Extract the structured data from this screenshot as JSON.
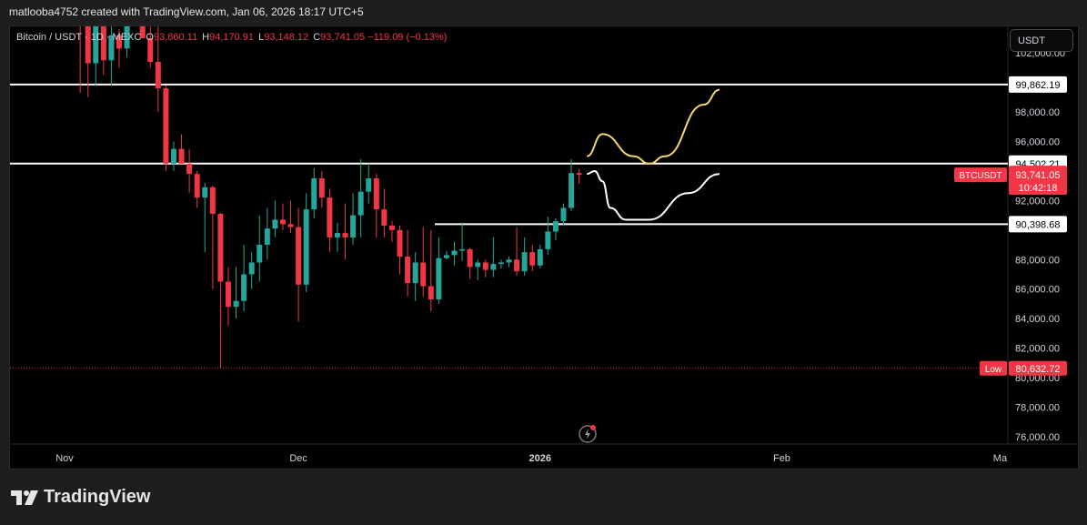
{
  "caption": "matlooba4752 created with TradingView.com, Jan 06, 2026 18:17 UTC+5",
  "legend": {
    "symbol": "Bitcoin / USDT · 1D · MEXC",
    "open_label": "O",
    "open": "93,860.11",
    "high_label": "H",
    "high": "94,170.91",
    "low_label": "L",
    "low": "93,148.12",
    "close_label": "C",
    "close": "93,741.05",
    "change": "−119.09 (−0.13%)"
  },
  "currency_button": "USDT",
  "brand": "TradingView",
  "colors": {
    "up": "#26a69a",
    "down": "#f23645",
    "line": "#ffffff",
    "yellow_path": "#f5d76e",
    "low_line": "#f23645"
  },
  "price_labels": {
    "levels": [
      {
        "value": 99862.19,
        "text": "99,862.19"
      },
      {
        "value": 94502.21,
        "text": "94,502.21"
      },
      {
        "value": 90398.68,
        "text": "90,398.68"
      }
    ],
    "current": {
      "ticker": "BTCUSDT",
      "price": "93,741.05",
      "countdown": "10:42:18",
      "value": 93741.05
    },
    "low": {
      "label": "Low",
      "price": "80,632.72",
      "value": 80632.72
    }
  },
  "chart_data": {
    "type": "candlestick",
    "y_axis": {
      "range": [
        75500,
        103800
      ],
      "ticks": [
        {
          "value": 102000,
          "label": "102,000.00"
        },
        {
          "value": 98000,
          "label": "98,000.00"
        },
        {
          "value": 96000,
          "label": "96,000.00"
        },
        {
          "value": 92000,
          "label": "92,000.00"
        },
        {
          "value": 88000,
          "label": "88,000.00"
        },
        {
          "value": 86000,
          "label": "86,000.00"
        },
        {
          "value": 84000,
          "label": "84,000.00"
        },
        {
          "value": 82000,
          "label": "82,000.00"
        },
        {
          "value": 80000,
          "label": "80,000.00"
        },
        {
          "value": 78000,
          "label": "78,000.00"
        },
        {
          "value": 76000,
          "label": "76,000.00"
        }
      ]
    },
    "x_axis": {
      "start_date": "2025-10-25",
      "end_date": "2026-03-02",
      "ticks": [
        {
          "date": "2025-11-01",
          "label": "Nov"
        },
        {
          "date": "2025-12-01",
          "label": "Dec"
        },
        {
          "date": "2026-01-01",
          "label": "2026"
        },
        {
          "date": "2026-02-01",
          "label": "Feb"
        },
        {
          "date": "2026-03-01",
          "label": "Ma"
        }
      ]
    },
    "candles": [
      {
        "date": "2025-11-03",
        "o": 107500,
        "h": 108000,
        "l": 99300,
        "c": 104000
      },
      {
        "date": "2025-11-04",
        "o": 104000,
        "h": 105000,
        "l": 99000,
        "c": 101300
      },
      {
        "date": "2025-11-05",
        "o": 101300,
        "h": 104500,
        "l": 99800,
        "c": 103900
      },
      {
        "date": "2025-11-06",
        "o": 103900,
        "h": 104100,
        "l": 100500,
        "c": 101500
      },
      {
        "date": "2025-11-07",
        "o": 101500,
        "h": 104000,
        "l": 99800,
        "c": 103200
      },
      {
        "date": "2025-11-08",
        "o": 103200,
        "h": 103600,
        "l": 101000,
        "c": 102300
      },
      {
        "date": "2025-11-09",
        "o": 102300,
        "h": 104500,
        "l": 101700,
        "c": 104700
      },
      {
        "date": "2025-11-10",
        "o": 104700,
        "h": 106500,
        "l": 104500,
        "c": 105900
      },
      {
        "date": "2025-11-11",
        "o": 105900,
        "h": 107000,
        "l": 103000,
        "c": 103000
      },
      {
        "date": "2025-11-12",
        "o": 103000,
        "h": 105500,
        "l": 101000,
        "c": 101400
      },
      {
        "date": "2025-11-13",
        "o": 101400,
        "h": 104000,
        "l": 98000,
        "c": 99600
      },
      {
        "date": "2025-11-14",
        "o": 99600,
        "h": 99800,
        "l": 94000,
        "c": 94500
      },
      {
        "date": "2025-11-15",
        "o": 94500,
        "h": 96000,
        "l": 94000,
        "c": 95500
      },
      {
        "date": "2025-11-16",
        "o": 95500,
        "h": 96500,
        "l": 94500,
        "c": 94500
      },
      {
        "date": "2025-11-17",
        "o": 94500,
        "h": 95500,
        "l": 92500,
        "c": 93800
      },
      {
        "date": "2025-11-18",
        "o": 93800,
        "h": 94000,
        "l": 91500,
        "c": 92200
      },
      {
        "date": "2025-11-19",
        "o": 92200,
        "h": 93200,
        "l": 88500,
        "c": 92900
      },
      {
        "date": "2025-11-20",
        "o": 92900,
        "h": 93000,
        "l": 86000,
        "c": 91100
      },
      {
        "date": "2025-11-21",
        "o": 91100,
        "h": 91200,
        "l": 80632.72,
        "c": 86500
      },
      {
        "date": "2025-11-22",
        "o": 86500,
        "h": 87500,
        "l": 83500,
        "c": 84800
      },
      {
        "date": "2025-11-23",
        "o": 84800,
        "h": 87500,
        "l": 84000,
        "c": 85200
      },
      {
        "date": "2025-11-24",
        "o": 85200,
        "h": 89000,
        "l": 84500,
        "c": 87000
      },
      {
        "date": "2025-11-25",
        "o": 87000,
        "h": 88500,
        "l": 86000,
        "c": 87800
      },
      {
        "date": "2025-11-26",
        "o": 87800,
        "h": 91000,
        "l": 86500,
        "c": 89000
      },
      {
        "date": "2025-11-27",
        "o": 89000,
        "h": 91500,
        "l": 88000,
        "c": 90100
      },
      {
        "date": "2025-11-28",
        "o": 90100,
        "h": 92000,
        "l": 89500,
        "c": 90700
      },
      {
        "date": "2025-11-29",
        "o": 90700,
        "h": 91800,
        "l": 90000,
        "c": 90400
      },
      {
        "date": "2025-11-30",
        "o": 90400,
        "h": 92000,
        "l": 89800,
        "c": 90200
      },
      {
        "date": "2025-12-01",
        "o": 90200,
        "h": 91500,
        "l": 83800,
        "c": 86300
      },
      {
        "date": "2025-12-02",
        "o": 86300,
        "h": 92500,
        "l": 85800,
        "c": 91400
      },
      {
        "date": "2025-12-03",
        "o": 91400,
        "h": 94200,
        "l": 90800,
        "c": 93500
      },
      {
        "date": "2025-12-04",
        "o": 93500,
        "h": 94000,
        "l": 91500,
        "c": 92200
      },
      {
        "date": "2025-12-05",
        "o": 92200,
        "h": 92800,
        "l": 88500,
        "c": 89500
      },
      {
        "date": "2025-12-06",
        "o": 89500,
        "h": 90500,
        "l": 88500,
        "c": 89800
      },
      {
        "date": "2025-12-07",
        "o": 89800,
        "h": 91800,
        "l": 88000,
        "c": 89500
      },
      {
        "date": "2025-12-08",
        "o": 89500,
        "h": 92500,
        "l": 89000,
        "c": 91000
      },
      {
        "date": "2025-12-09",
        "o": 91000,
        "h": 94800,
        "l": 89500,
        "c": 92600
      },
      {
        "date": "2025-12-10",
        "o": 92600,
        "h": 94500,
        "l": 91800,
        "c": 93500
      },
      {
        "date": "2025-12-11",
        "o": 93500,
        "h": 93800,
        "l": 89500,
        "c": 91400
      },
      {
        "date": "2025-12-12",
        "o": 91400,
        "h": 92800,
        "l": 89500,
        "c": 90300
      },
      {
        "date": "2025-12-13",
        "o": 90300,
        "h": 90600,
        "l": 89200,
        "c": 90000
      },
      {
        "date": "2025-12-14",
        "o": 90000,
        "h": 90300,
        "l": 87000,
        "c": 88200
      },
      {
        "date": "2025-12-15",
        "o": 88200,
        "h": 90000,
        "l": 85500,
        "c": 86400
      },
      {
        "date": "2025-12-16",
        "o": 86400,
        "h": 88500,
        "l": 85200,
        "c": 87800
      },
      {
        "date": "2025-12-17",
        "o": 87800,
        "h": 90200,
        "l": 85500,
        "c": 86200
      },
      {
        "date": "2025-12-18",
        "o": 86200,
        "h": 90000,
        "l": 84500,
        "c": 85300
      },
      {
        "date": "2025-12-19",
        "o": 85300,
        "h": 89500,
        "l": 85000,
        "c": 88100
      },
      {
        "date": "2025-12-20",
        "o": 88100,
        "h": 88600,
        "l": 88000,
        "c": 88300
      },
      {
        "date": "2025-12-21",
        "o": 88300,
        "h": 89200,
        "l": 87600,
        "c": 88600
      },
      {
        "date": "2025-12-22",
        "o": 88600,
        "h": 90500,
        "l": 87900,
        "c": 88700
      },
      {
        "date": "2025-12-23",
        "o": 88700,
        "h": 88800,
        "l": 86700,
        "c": 87500
      },
      {
        "date": "2025-12-24",
        "o": 87500,
        "h": 88000,
        "l": 86600,
        "c": 87800
      },
      {
        "date": "2025-12-25",
        "o": 87800,
        "h": 88000,
        "l": 86800,
        "c": 87300
      },
      {
        "date": "2025-12-26",
        "o": 87300,
        "h": 89500,
        "l": 86800,
        "c": 87700
      },
      {
        "date": "2025-12-27",
        "o": 87700,
        "h": 88000,
        "l": 87400,
        "c": 87800
      },
      {
        "date": "2025-12-28",
        "o": 87800,
        "h": 88200,
        "l": 87500,
        "c": 88000
      },
      {
        "date": "2025-12-29",
        "o": 88000,
        "h": 90200,
        "l": 86900,
        "c": 87200
      },
      {
        "date": "2025-12-30",
        "o": 87200,
        "h": 89500,
        "l": 86900,
        "c": 88500
      },
      {
        "date": "2025-12-31",
        "o": 88500,
        "h": 89000,
        "l": 87200,
        "c": 87600
      },
      {
        "date": "2026-01-01",
        "o": 87600,
        "h": 89000,
        "l": 87400,
        "c": 88700
      },
      {
        "date": "2026-01-02",
        "o": 88700,
        "h": 90900,
        "l": 88300,
        "c": 89900
      },
      {
        "date": "2026-01-03",
        "o": 89900,
        "h": 90800,
        "l": 89300,
        "c": 90600
      },
      {
        "date": "2026-01-04",
        "o": 90600,
        "h": 91800,
        "l": 90300,
        "c": 91500
      },
      {
        "date": "2026-01-05",
        "o": 91500,
        "h": 94800,
        "l": 91300,
        "c": 93860.11
      },
      {
        "date": "2026-01-06",
        "o": 93860.11,
        "h": 94170.91,
        "l": 93148.12,
        "c": 93741.05
      }
    ],
    "horizontal_levels": [
      99862.19,
      94502.21,
      90398.68
    ],
    "low_marker": 80632.72,
    "drawn_paths": [
      {
        "color": "yellow",
        "points": [
          [
            "2026-01-07",
            95000
          ],
          [
            "2026-01-09",
            96500
          ],
          [
            "2026-01-13",
            95000
          ],
          [
            "2026-01-15",
            94500
          ],
          [
            "2026-01-17",
            95000
          ],
          [
            "2026-01-22",
            98500
          ],
          [
            "2026-01-24",
            99500
          ]
        ]
      },
      {
        "color": "white",
        "points": [
          [
            "2026-01-07",
            93800
          ],
          [
            "2026-01-08",
            94000
          ],
          [
            "2026-01-09",
            93300
          ],
          [
            "2026-01-10",
            91500
          ],
          [
            "2026-01-12",
            90700
          ],
          [
            "2026-01-15",
            90700
          ],
          [
            "2026-01-20",
            92500
          ],
          [
            "2026-01-24",
            93800
          ]
        ]
      }
    ]
  }
}
